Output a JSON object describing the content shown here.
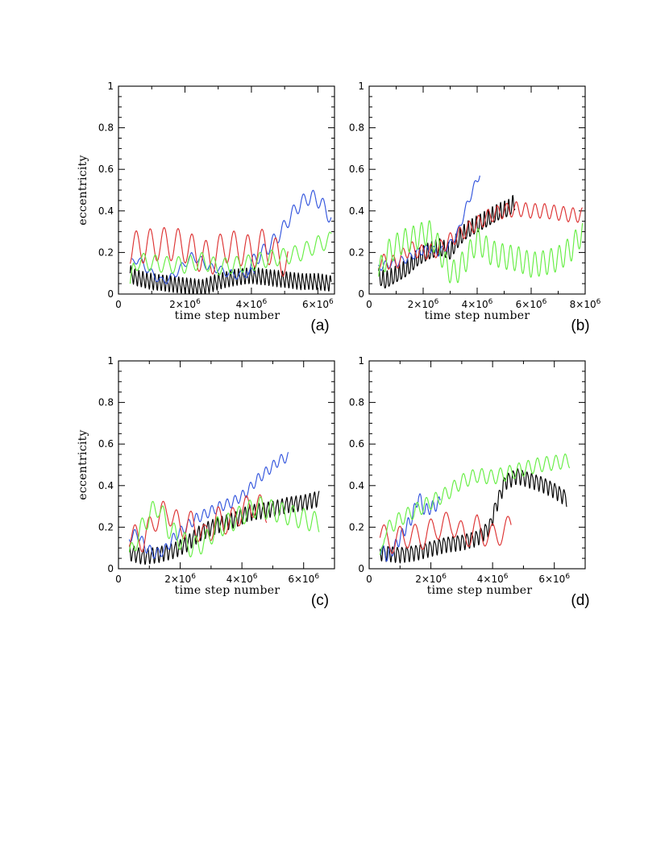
{
  "chart_data": [
    {
      "type": "line",
      "panel_label": "(a)",
      "xlabel": "time step number",
      "ylabel": "eccentricity",
      "xlim": [
        0,
        6500000
      ],
      "ylim": [
        0,
        1
      ],
      "x_ticks": [
        2000000,
        4000000,
        6000000
      ],
      "x_tick_labels": [
        "2×10",
        "4×10",
        "6×10"
      ],
      "x_tick_exponent": "6",
      "y_ticks": [
        0,
        0.2,
        0.4,
        0.6,
        0.8,
        1
      ],
      "y_tick_labels": [
        "0",
        "0.2",
        "0.4",
        "0.6",
        "0.8",
        "1"
      ],
      "series": [
        {
          "name": "black",
          "color": "#000000",
          "x": [
            0.35,
            0.5,
            1,
            1.5,
            2,
            2.5,
            3,
            3.5,
            4,
            4.5,
            5,
            5.5,
            6,
            6.4
          ],
          "y": [
            0.1,
            0.08,
            0.06,
            0.05,
            0.04,
            0.03,
            0.06,
            0.08,
            0.09,
            0.08,
            0.07,
            0.06,
            0.06,
            0.05
          ],
          "amp": 0.035,
          "period": 0.12,
          "amp_bias": 0.3
        },
        {
          "name": "blue",
          "color": "#3355dd",
          "x": [
            0.4,
            0.6,
            0.8,
            1,
            1.3,
            1.6,
            1.9,
            2.2,
            2.5,
            2.7,
            3,
            3.3,
            3.6,
            3.9,
            4.1
          ],
          "y": [
            0.15,
            0.17,
            0.13,
            0.1,
            0.06,
            0.08,
            0.13,
            0.18,
            0.16,
            0.13,
            0.12,
            0.1,
            0.09,
            0.1,
            0.11
          ],
          "amp": 0.02,
          "period": 0.3
        },
        {
          "name": "blue",
          "color": "#3355dd",
          "x": [
            3.85,
            4.2,
            4.6,
            4.9,
            5.2,
            5.5,
            5.8,
            6.1,
            6.4
          ],
          "y": [
            0.12,
            0.18,
            0.24,
            0.3,
            0.38,
            0.44,
            0.47,
            0.44,
            0.36
          ],
          "amp": 0.035,
          "period": 0.3
        },
        {
          "name": "red",
          "color": "#dd3333",
          "x": [
            0.35,
            0.8,
            1.2,
            1.6,
            2,
            2.4,
            2.8,
            3.2,
            3.6,
            4,
            4.4,
            4.8,
            5.1
          ],
          "y": [
            0.22,
            0.23,
            0.24,
            0.24,
            0.23,
            0.19,
            0.17,
            0.23,
            0.22,
            0.2,
            0.24,
            0.18,
            0.15
          ],
          "amp": 0.08,
          "period": 0.42
        },
        {
          "name": "green",
          "color": "#66ee44",
          "x": [
            0.35,
            0.45,
            0.6,
            1,
            1.5,
            2,
            2.5,
            3,
            3.5,
            4,
            4.5,
            5,
            5.5,
            6,
            6.4
          ],
          "y": [
            0.03,
            0.12,
            0.16,
            0.15,
            0.14,
            0.14,
            0.16,
            0.13,
            0.14,
            0.15,
            0.17,
            0.18,
            0.2,
            0.24,
            0.26
          ],
          "amp": 0.04,
          "period": 0.35
        }
      ]
    },
    {
      "type": "line",
      "panel_label": "(b)",
      "xlabel": "time step number",
      "ylabel": "",
      "xlim": [
        0,
        8000000
      ],
      "ylim": [
        0,
        1
      ],
      "x_ticks": [
        2000000,
        4000000,
        6000000,
        8000000
      ],
      "x_tick_labels": [
        "2×10",
        "4×10",
        "6×10",
        "8×10"
      ],
      "x_tick_exponent": "6",
      "y_ticks": [
        0,
        0.2,
        0.4,
        0.6,
        0.8,
        1
      ],
      "y_tick_labels": [
        "0",
        "0.2",
        "0.4",
        "0.6",
        "0.8",
        "1"
      ],
      "series": [
        {
          "name": "black",
          "color": "#000000",
          "x": [
            0.35,
            0.6,
            1,
            1.4,
            1.8,
            2.2,
            2.6,
            3,
            3.3,
            3.6,
            4,
            4.4,
            4.8,
            5.2,
            5.4
          ],
          "y": [
            0.08,
            0.06,
            0.09,
            0.12,
            0.17,
            0.2,
            0.22,
            0.2,
            0.26,
            0.3,
            0.33,
            0.36,
            0.39,
            0.41,
            0.44
          ],
          "amp": 0.04,
          "period": 0.15,
          "amp_bias": 0.2
        },
        {
          "name": "blue",
          "color": "#3355dd",
          "x": [
            0.35,
            0.6,
            1,
            1.4,
            1.8,
            2.2,
            2.6,
            3,
            3.3,
            3.6,
            3.9,
            4.1
          ],
          "y": [
            0.13,
            0.14,
            0.15,
            0.17,
            0.2,
            0.22,
            0.2,
            0.24,
            0.3,
            0.42,
            0.52,
            0.58
          ],
          "amp": 0.02,
          "period": 0.3
        },
        {
          "name": "red",
          "color": "#dd3333",
          "x": [
            0.35,
            1,
            1.5,
            2,
            2.5,
            3,
            3.5,
            4,
            4.5,
            5,
            5.5,
            6,
            6.5,
            7,
            7.5,
            7.9
          ],
          "y": [
            0.16,
            0.15,
            0.22,
            0.2,
            0.21,
            0.26,
            0.3,
            0.34,
            0.38,
            0.4,
            0.41,
            0.4,
            0.4,
            0.39,
            0.38,
            0.38
          ],
          "amp": 0.035,
          "period": 0.35
        },
        {
          "name": "green",
          "color": "#66ee44",
          "x": [
            0.35,
            0.7,
            1.2,
            1.7,
            2.2,
            2.6,
            2.9,
            3.2,
            3.6,
            4,
            4.5,
            5,
            5.5,
            6,
            6.5,
            7,
            7.5,
            7.9
          ],
          "y": [
            0.1,
            0.2,
            0.25,
            0.27,
            0.3,
            0.22,
            0.12,
            0.1,
            0.17,
            0.26,
            0.2,
            0.18,
            0.17,
            0.14,
            0.15,
            0.17,
            0.22,
            0.3
          ],
          "amp": 0.06,
          "period": 0.3
        }
      ]
    },
    {
      "type": "line",
      "panel_label": "(c)",
      "xlabel": "time step number",
      "ylabel": "eccentricity",
      "xlim": [
        0,
        7000000
      ],
      "ylim": [
        0,
        1
      ],
      "x_ticks": [
        2000000,
        4000000,
        6000000
      ],
      "x_tick_labels": [
        "2×10",
        "4×10",
        "6×10"
      ],
      "x_tick_exponent": "6",
      "y_ticks": [
        0,
        0.2,
        0.4,
        0.6,
        0.8,
        1
      ],
      "y_tick_labels": [
        "0",
        "0.2",
        "0.4",
        "0.6",
        "0.8",
        "1"
      ],
      "series": [
        {
          "name": "black",
          "color": "#000000",
          "x": [
            0.35,
            0.8,
            1.3,
            1.8,
            2.2,
            2.6,
            3,
            3.4,
            3.8,
            4.2,
            4.6,
            5,
            5.5,
            6,
            6.5
          ],
          "y": [
            0.08,
            0.06,
            0.07,
            0.09,
            0.12,
            0.17,
            0.2,
            0.22,
            0.24,
            0.27,
            0.28,
            0.29,
            0.31,
            0.32,
            0.34
          ],
          "amp": 0.035,
          "period": 0.15,
          "amp_bias": 0.25
        },
        {
          "name": "blue",
          "color": "#3355dd",
          "x": [
            0.35,
            0.6,
            0.9,
            1.2,
            1.5,
            1.8,
            2.1,
            2.5,
            2.9,
            3.3,
            3.7,
            4.1,
            4.5,
            4.9,
            5.2,
            5.5
          ],
          "y": [
            0.15,
            0.17,
            0.1,
            0.07,
            0.09,
            0.15,
            0.19,
            0.24,
            0.27,
            0.3,
            0.32,
            0.36,
            0.43,
            0.48,
            0.52,
            0.54
          ],
          "amp": 0.025,
          "period": 0.25
        },
        {
          "name": "red",
          "color": "#dd3333",
          "x": [
            0.35,
            0.8,
            1.2,
            1.6,
            2,
            2.4,
            2.8,
            3.2,
            3.6,
            4,
            4.4,
            4.8
          ],
          "y": [
            0.16,
            0.14,
            0.24,
            0.28,
            0.2,
            0.22,
            0.15,
            0.24,
            0.22,
            0.28,
            0.31,
            0.28
          ],
          "amp": 0.06,
          "period": 0.45
        },
        {
          "name": "green",
          "color": "#66ee44",
          "x": [
            0.35,
            0.6,
            1,
            1.3,
            1.6,
            2,
            2.4,
            2.8,
            3.2,
            3.6,
            4,
            4.5,
            5,
            5.5,
            6,
            6.5
          ],
          "y": [
            0.05,
            0.15,
            0.26,
            0.3,
            0.2,
            0.14,
            0.1,
            0.13,
            0.2,
            0.22,
            0.26,
            0.3,
            0.28,
            0.26,
            0.24,
            0.22
          ],
          "amp": 0.05,
          "period": 0.35
        }
      ]
    },
    {
      "type": "line",
      "panel_label": "(d)",
      "xlabel": "time step number",
      "ylabel": "",
      "xlim": [
        0,
        7000000
      ],
      "ylim": [
        0,
        1
      ],
      "x_ticks": [
        2000000,
        4000000,
        6000000
      ],
      "x_tick_labels": [
        "2×10",
        "4×10",
        "6×10"
      ],
      "x_tick_exponent": "6",
      "y_ticks": [
        0,
        0.2,
        0.4,
        0.6,
        0.8,
        1
      ],
      "y_tick_labels": [
        "0",
        "0.2",
        "0.4",
        "0.6",
        "0.8",
        "1"
      ],
      "series": [
        {
          "name": "black",
          "color": "#000000",
          "x": [
            0.35,
            1,
            1.5,
            2,
            2.5,
            3,
            3.5,
            3.9,
            4.1,
            4.4,
            4.8,
            5.2,
            5.6,
            6,
            6.4
          ],
          "y": [
            0.08,
            0.07,
            0.08,
            0.1,
            0.12,
            0.13,
            0.15,
            0.2,
            0.3,
            0.42,
            0.45,
            0.43,
            0.41,
            0.38,
            0.34
          ],
          "amp": 0.035,
          "period": 0.15,
          "amp_bias": 0.25
        },
        {
          "name": "blue",
          "color": "#3355dd",
          "x": [
            0.35,
            0.6,
            0.9,
            1.2,
            1.4,
            1.6,
            1.8,
            2.1,
            2.3
          ],
          "y": [
            0.1,
            0.06,
            0.12,
            0.2,
            0.25,
            0.35,
            0.28,
            0.3,
            0.32
          ],
          "amp": 0.03,
          "period": 0.2
        },
        {
          "name": "red",
          "color": "#dd3333",
          "x": [
            0.35,
            0.8,
            1.2,
            1.7,
            2.2,
            2.7,
            3.1,
            3.5,
            3.9,
            4.2,
            4.6
          ],
          "y": [
            0.16,
            0.13,
            0.16,
            0.15,
            0.2,
            0.22,
            0.15,
            0.2,
            0.15,
            0.17,
            0.2
          ],
          "amp": 0.06,
          "period": 0.5
        },
        {
          "name": "green",
          "color": "#66ee44",
          "x": [
            0.35,
            0.5,
            1,
            1.5,
            2,
            2.5,
            3,
            3.5,
            4,
            4.5,
            5,
            5.5,
            6,
            6.5
          ],
          "y": [
            0.03,
            0.18,
            0.24,
            0.28,
            0.32,
            0.36,
            0.42,
            0.45,
            0.44,
            0.46,
            0.48,
            0.5,
            0.51,
            0.52
          ],
          "amp": 0.035,
          "period": 0.3
        }
      ]
    }
  ]
}
